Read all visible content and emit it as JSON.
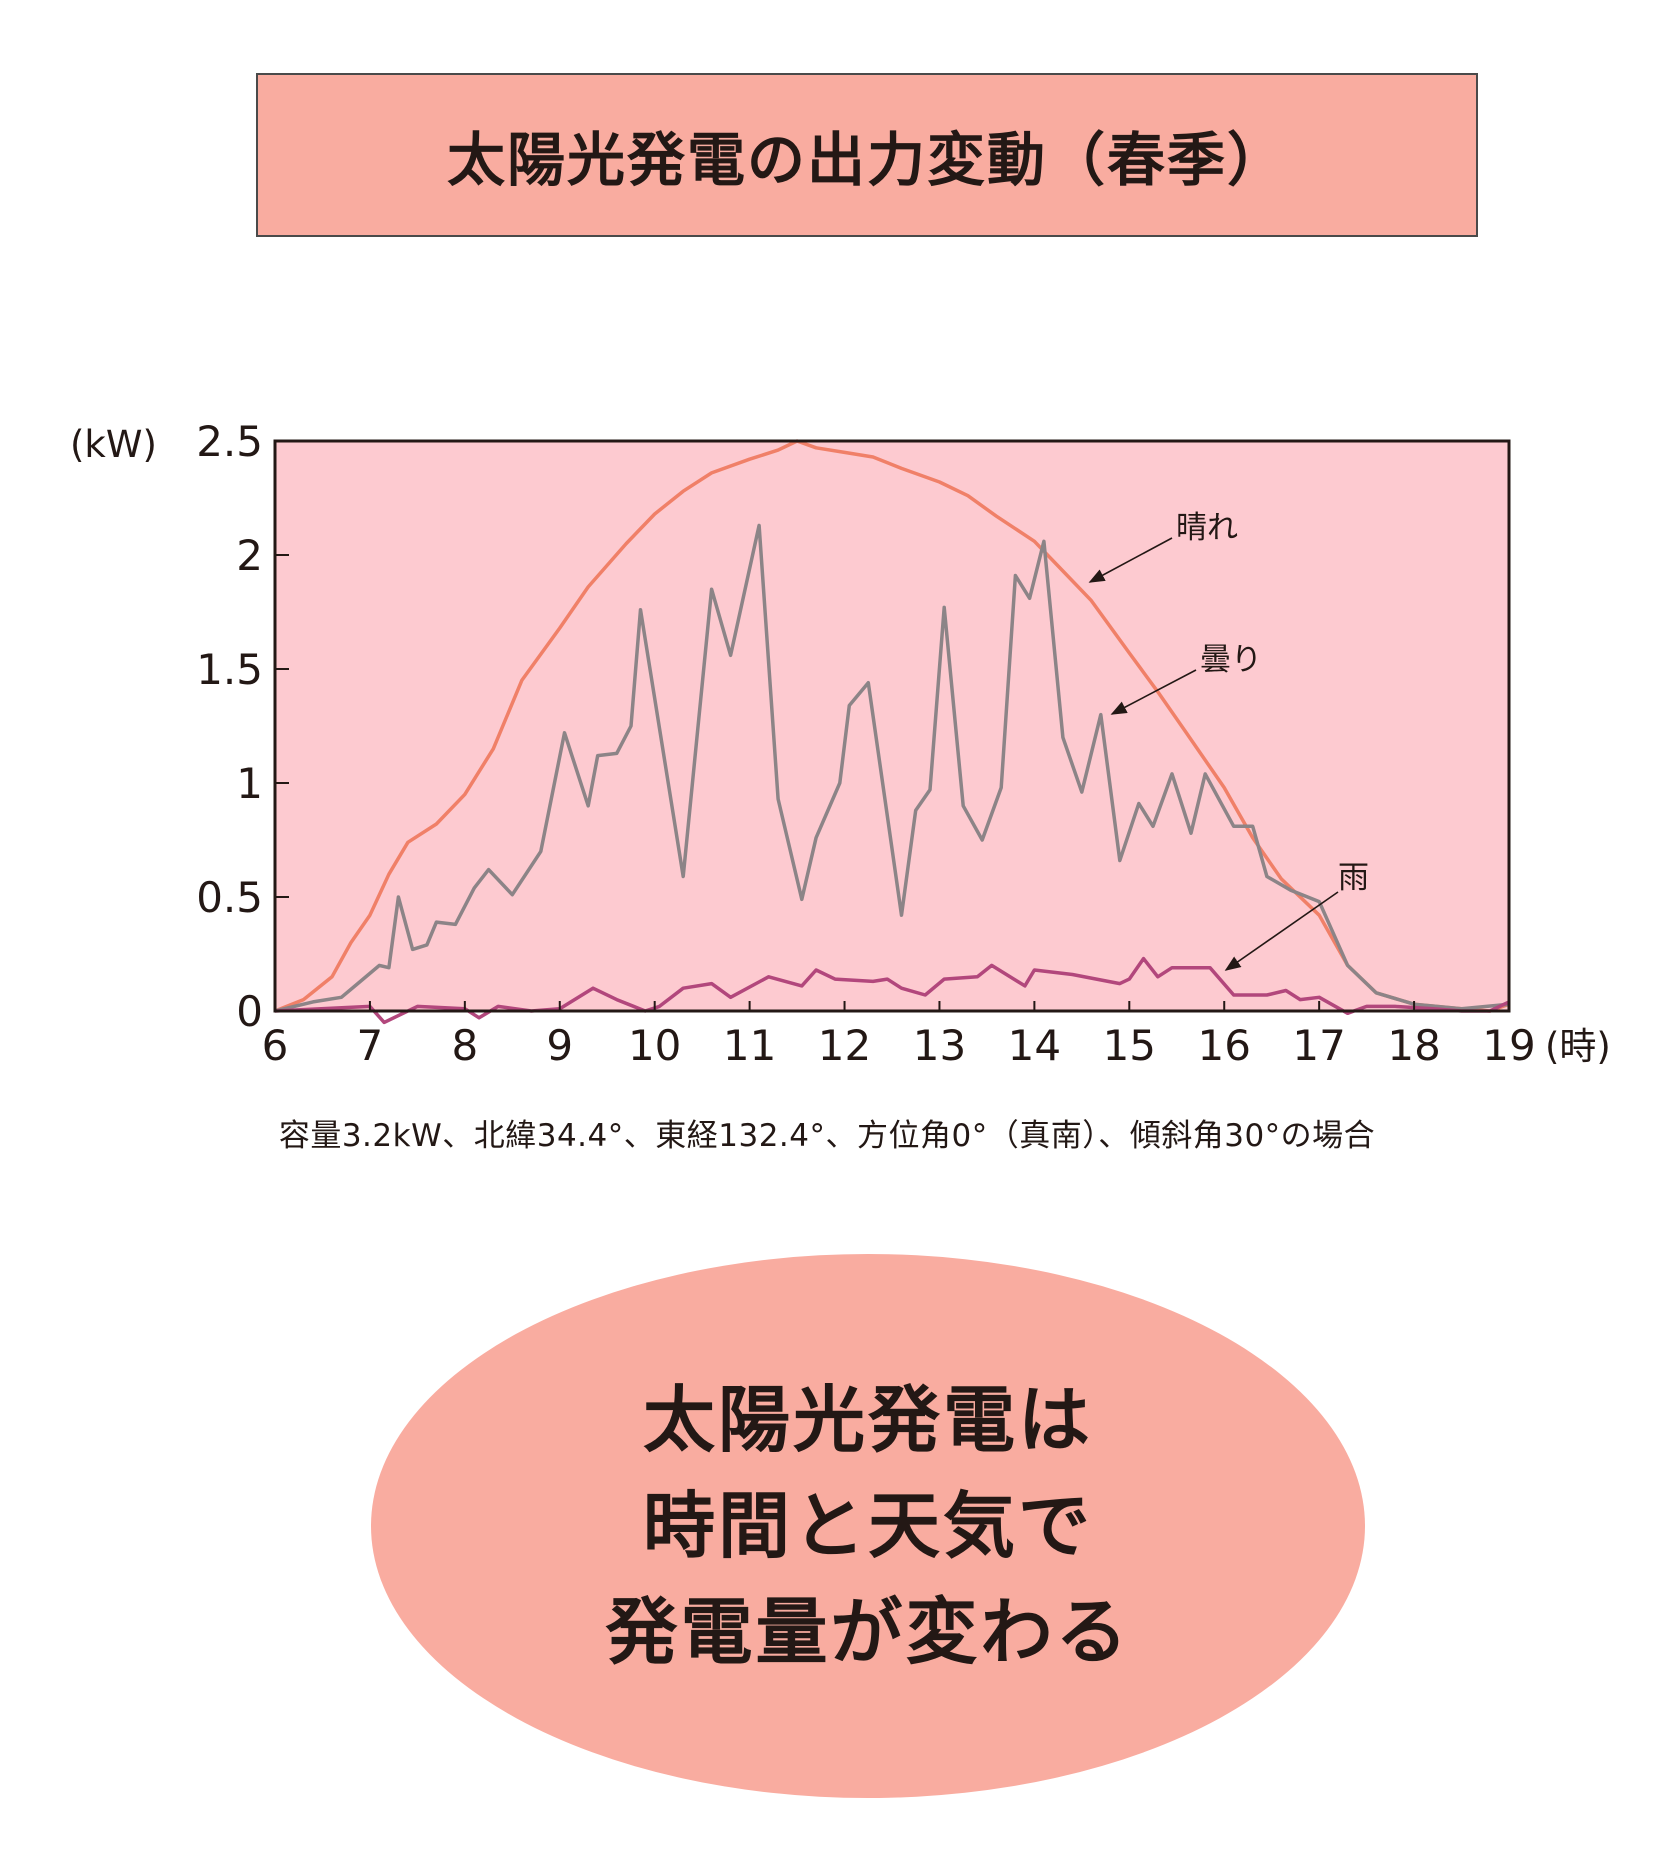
{
  "title": "太陽光発電の出力変動（春季）",
  "chart_data": {
    "type": "line",
    "y_unit": "(kW)",
    "x_unit": "(時)",
    "xlim": [
      6,
      19
    ],
    "ylim": [
      0,
      2.5
    ],
    "x_ticks": [
      "6",
      "7",
      "8",
      "9",
      "10",
      "11",
      "12",
      "13",
      "14",
      "15",
      "16",
      "17",
      "18",
      "19"
    ],
    "y_ticks": [
      "0",
      "0.5",
      "1",
      "1.5",
      "2",
      "2.5"
    ],
    "grid": false,
    "series": [
      {
        "name": "晴れ",
        "color": "#f08068",
        "points": [
          [
            6,
            0
          ],
          [
            6.3,
            0.05
          ],
          [
            6.6,
            0.15
          ],
          [
            6.8,
            0.3
          ],
          [
            7,
            0.42
          ],
          [
            7.2,
            0.6
          ],
          [
            7.4,
            0.74
          ],
          [
            7.7,
            0.82
          ],
          [
            8,
            0.95
          ],
          [
            8.3,
            1.15
          ],
          [
            8.6,
            1.45
          ],
          [
            9,
            1.68
          ],
          [
            9.3,
            1.86
          ],
          [
            9.7,
            2.05
          ],
          [
            10,
            2.18
          ],
          [
            10.3,
            2.28
          ],
          [
            10.6,
            2.36
          ],
          [
            11,
            2.42
          ],
          [
            11.3,
            2.46
          ],
          [
            11.5,
            2.5
          ],
          [
            11.7,
            2.47
          ],
          [
            12,
            2.45
          ],
          [
            12.3,
            2.43
          ],
          [
            12.6,
            2.38
          ],
          [
            13,
            2.32
          ],
          [
            13.3,
            2.26
          ],
          [
            13.6,
            2.17
          ],
          [
            14,
            2.06
          ],
          [
            14.3,
            1.93
          ],
          [
            14.6,
            1.8
          ],
          [
            15,
            1.57
          ],
          [
            15.3,
            1.4
          ],
          [
            15.6,
            1.22
          ],
          [
            16,
            0.98
          ],
          [
            16.3,
            0.76
          ],
          [
            16.6,
            0.58
          ],
          [
            17,
            0.42
          ],
          [
            17.3,
            0.2
          ],
          [
            17.6,
            0.08
          ],
          [
            18,
            0.03
          ],
          [
            18.5,
            0.01
          ],
          [
            18.8,
            0
          ],
          [
            19,
            0.03
          ]
        ]
      },
      {
        "name": "曇り",
        "color": "#8c8487",
        "points": [
          [
            6,
            0
          ],
          [
            6.4,
            0.04
          ],
          [
            6.7,
            0.06
          ],
          [
            6.9,
            0.13
          ],
          [
            7.1,
            0.2
          ],
          [
            7.2,
            0.19
          ],
          [
            7.3,
            0.5
          ],
          [
            7.45,
            0.27
          ],
          [
            7.6,
            0.29
          ],
          [
            7.7,
            0.39
          ],
          [
            7.9,
            0.38
          ],
          [
            8.1,
            0.54
          ],
          [
            8.25,
            0.62
          ],
          [
            8.5,
            0.51
          ],
          [
            8.8,
            0.7
          ],
          [
            9.05,
            1.22
          ],
          [
            9.3,
            0.9
          ],
          [
            9.4,
            1.12
          ],
          [
            9.6,
            1.13
          ],
          [
            9.75,
            1.25
          ],
          [
            9.85,
            1.76
          ],
          [
            10.3,
            0.59
          ],
          [
            10.6,
            1.85
          ],
          [
            10.8,
            1.56
          ],
          [
            11.1,
            2.13
          ],
          [
            11.3,
            0.93
          ],
          [
            11.55,
            0.49
          ],
          [
            11.7,
            0.76
          ],
          [
            11.95,
            1.0
          ],
          [
            12.05,
            1.34
          ],
          [
            12.25,
            1.44
          ],
          [
            12.6,
            0.42
          ],
          [
            12.75,
            0.88
          ],
          [
            12.9,
            0.97
          ],
          [
            13.05,
            1.77
          ],
          [
            13.25,
            0.9
          ],
          [
            13.45,
            0.75
          ],
          [
            13.65,
            0.98
          ],
          [
            13.8,
            1.91
          ],
          [
            13.95,
            1.81
          ],
          [
            14.1,
            2.06
          ],
          [
            14.3,
            1.2
          ],
          [
            14.5,
            0.96
          ],
          [
            14.7,
            1.3
          ],
          [
            14.9,
            0.66
          ],
          [
            15.1,
            0.91
          ],
          [
            15.25,
            0.81
          ],
          [
            15.45,
            1.04
          ],
          [
            15.65,
            0.78
          ],
          [
            15.8,
            1.04
          ],
          [
            16.1,
            0.81
          ],
          [
            16.3,
            0.81
          ],
          [
            16.45,
            0.59
          ],
          [
            16.7,
            0.53
          ],
          [
            17,
            0.48
          ],
          [
            17.3,
            0.2
          ],
          [
            17.6,
            0.08
          ],
          [
            18,
            0.03
          ],
          [
            18.5,
            0.01
          ],
          [
            19,
            0.03
          ]
        ]
      },
      {
        "name": "雨",
        "color": "#b2477c",
        "points": [
          [
            6,
            0
          ],
          [
            7,
            0.02
          ],
          [
            7.15,
            -0.05
          ],
          [
            7.5,
            0.02
          ],
          [
            8,
            0.01
          ],
          [
            8.15,
            -0.03
          ],
          [
            8.35,
            0.02
          ],
          [
            8.7,
            0
          ],
          [
            9,
            0.01
          ],
          [
            9.35,
            0.1
          ],
          [
            9.6,
            0.05
          ],
          [
            9.9,
            0
          ],
          [
            10.05,
            0.02
          ],
          [
            10.3,
            0.1
          ],
          [
            10.6,
            0.12
          ],
          [
            10.8,
            0.06
          ],
          [
            11.2,
            0.15
          ],
          [
            11.55,
            0.11
          ],
          [
            11.7,
            0.18
          ],
          [
            11.9,
            0.14
          ],
          [
            12.3,
            0.13
          ],
          [
            12.45,
            0.14
          ],
          [
            12.6,
            0.1
          ],
          [
            12.85,
            0.07
          ],
          [
            13.05,
            0.14
          ],
          [
            13.4,
            0.15
          ],
          [
            13.55,
            0.2
          ],
          [
            13.9,
            0.11
          ],
          [
            14,
            0.18
          ],
          [
            14.4,
            0.16
          ],
          [
            14.9,
            0.12
          ],
          [
            15,
            0.14
          ],
          [
            15.15,
            0.23
          ],
          [
            15.3,
            0.15
          ],
          [
            15.45,
            0.19
          ],
          [
            15.85,
            0.19
          ],
          [
            16.1,
            0.07
          ],
          [
            16.45,
            0.07
          ],
          [
            16.65,
            0.09
          ],
          [
            16.8,
            0.05
          ],
          [
            17,
            0.06
          ],
          [
            17.3,
            -0.01
          ],
          [
            17.5,
            0.02
          ],
          [
            17.8,
            0.02
          ],
          [
            18.2,
            0.01
          ],
          [
            18.5,
            0
          ],
          [
            18.8,
            0
          ],
          [
            19,
            0.04
          ]
        ]
      }
    ],
    "annotations": [
      "晴れ",
      "曇り",
      "雨"
    ]
  },
  "note": "容量3.2kW、北緯34.4°、東経132.4°、方位角0°（真南）、傾斜角30°の場合",
  "bubble_lines": [
    "太陽光発電は",
    "時間と天気で",
    "発電量が変わる"
  ]
}
